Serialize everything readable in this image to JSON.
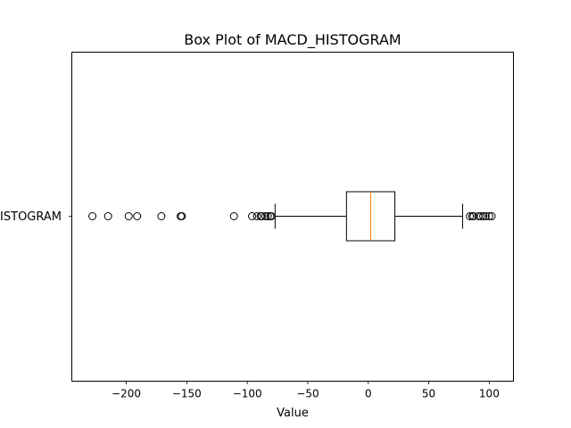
{
  "chart_data": {
    "type": "box",
    "orientation": "horizontal",
    "title": "Box Plot of MACD_HISTOGRAM",
    "xlabel": "Value",
    "ylabel": "",
    "category_label": "MACD_HISTOGRAM",
    "xlim": [
      -245,
      120
    ],
    "xticks": [
      -200,
      -150,
      -100,
      -50,
      0,
      50,
      100
    ],
    "xtick_labels": [
      "−200",
      "−150",
      "−100",
      "−50",
      "0",
      "50",
      "100"
    ],
    "grid": false,
    "series": [
      {
        "name": "MACD_HISTOGRAM",
        "whisker_low": -77,
        "q1": -18,
        "median": 2,
        "q3": 22,
        "whisker_high": 78,
        "outliers": [
          -228,
          -215,
          -198,
          -191,
          -171,
          -155,
          -154,
          -111,
          -96,
          -92,
          -89,
          -88,
          -85,
          -83,
          -81,
          -80,
          84,
          86,
          87,
          91,
          93,
          95,
          97,
          100,
          102
        ]
      }
    ],
    "colors": {
      "box": "#000000",
      "median": "#ff7f0e",
      "outlier": "#000000"
    }
  }
}
